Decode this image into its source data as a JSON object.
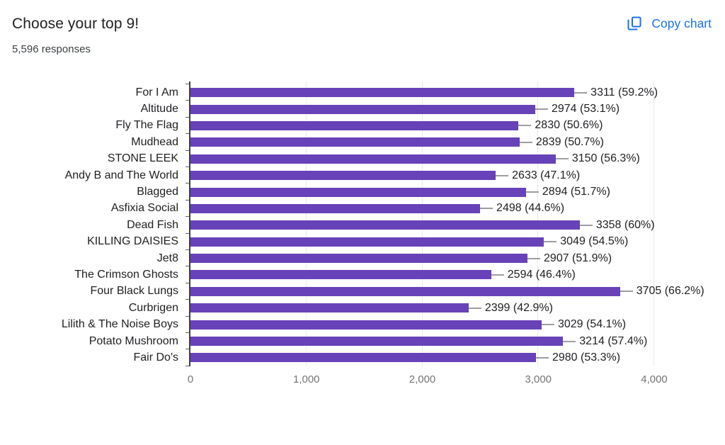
{
  "header": {
    "title": "Choose your top 9!",
    "responses": "5,596 responses",
    "copy_chart_label": "Copy chart"
  },
  "colors": {
    "bar": "#6842b8",
    "link_blue": "#1a73e8",
    "gridline": "#e8eaed",
    "axis": "#3c4043",
    "leader_line": "#9e9e9e",
    "text_dark": "#202124",
    "axis_tick_label": "#757575"
  },
  "chart_data": {
    "type": "bar",
    "orientation": "horizontal",
    "title": "Choose your top 9!",
    "subtitle": "5,596 responses",
    "total_responses": 5596,
    "categories": [
      "For I Am",
      "Altitude",
      "Fly The Flag",
      "Mudhead",
      "STONE LEEK",
      "Andy B and The World",
      "Blagged",
      "Asfixia Social",
      "Dead Fish",
      "KILLING DAISIES",
      "Jet8",
      "The Crimson Ghosts",
      "Four Black Lungs",
      "Curbrigen",
      "Lilith & The Noise Boys",
      "Potato Mushroom",
      "Fair Do's"
    ],
    "values": [
      3311,
      2974,
      2830,
      2839,
      3150,
      2633,
      2894,
      2498,
      3358,
      3049,
      2907,
      2594,
      3705,
      2399,
      3029,
      3214,
      2980
    ],
    "value_labels": [
      "3311 (59.2%)",
      "2974 (53.1%)",
      "2830 (50.6%)",
      "2839 (50.7%)",
      "3150 (56.3%)",
      "2633 (47.1%)",
      "2894 (51.7%)",
      "2498 (44.6%)",
      "3358 (60%)",
      "3049 (54.5%)",
      "2907 (51.9%)",
      "2594 (46.4%)",
      "3705 (66.2%)",
      "2399 (42.9%)",
      "3029 (54.1%)",
      "3214 (57.4%)",
      "2980 (53.3%)"
    ],
    "xlabel": "",
    "ylabel": "",
    "xlim": [
      0,
      4000
    ],
    "x_ticks": [
      {
        "value": 0,
        "label": "0"
      },
      {
        "value": 1000,
        "label": "1,000"
      },
      {
        "value": 2000,
        "label": "2,000"
      },
      {
        "value": 3000,
        "label": "3,000"
      },
      {
        "value": 4000,
        "label": "4,000"
      }
    ],
    "grid": true,
    "legend": false
  }
}
